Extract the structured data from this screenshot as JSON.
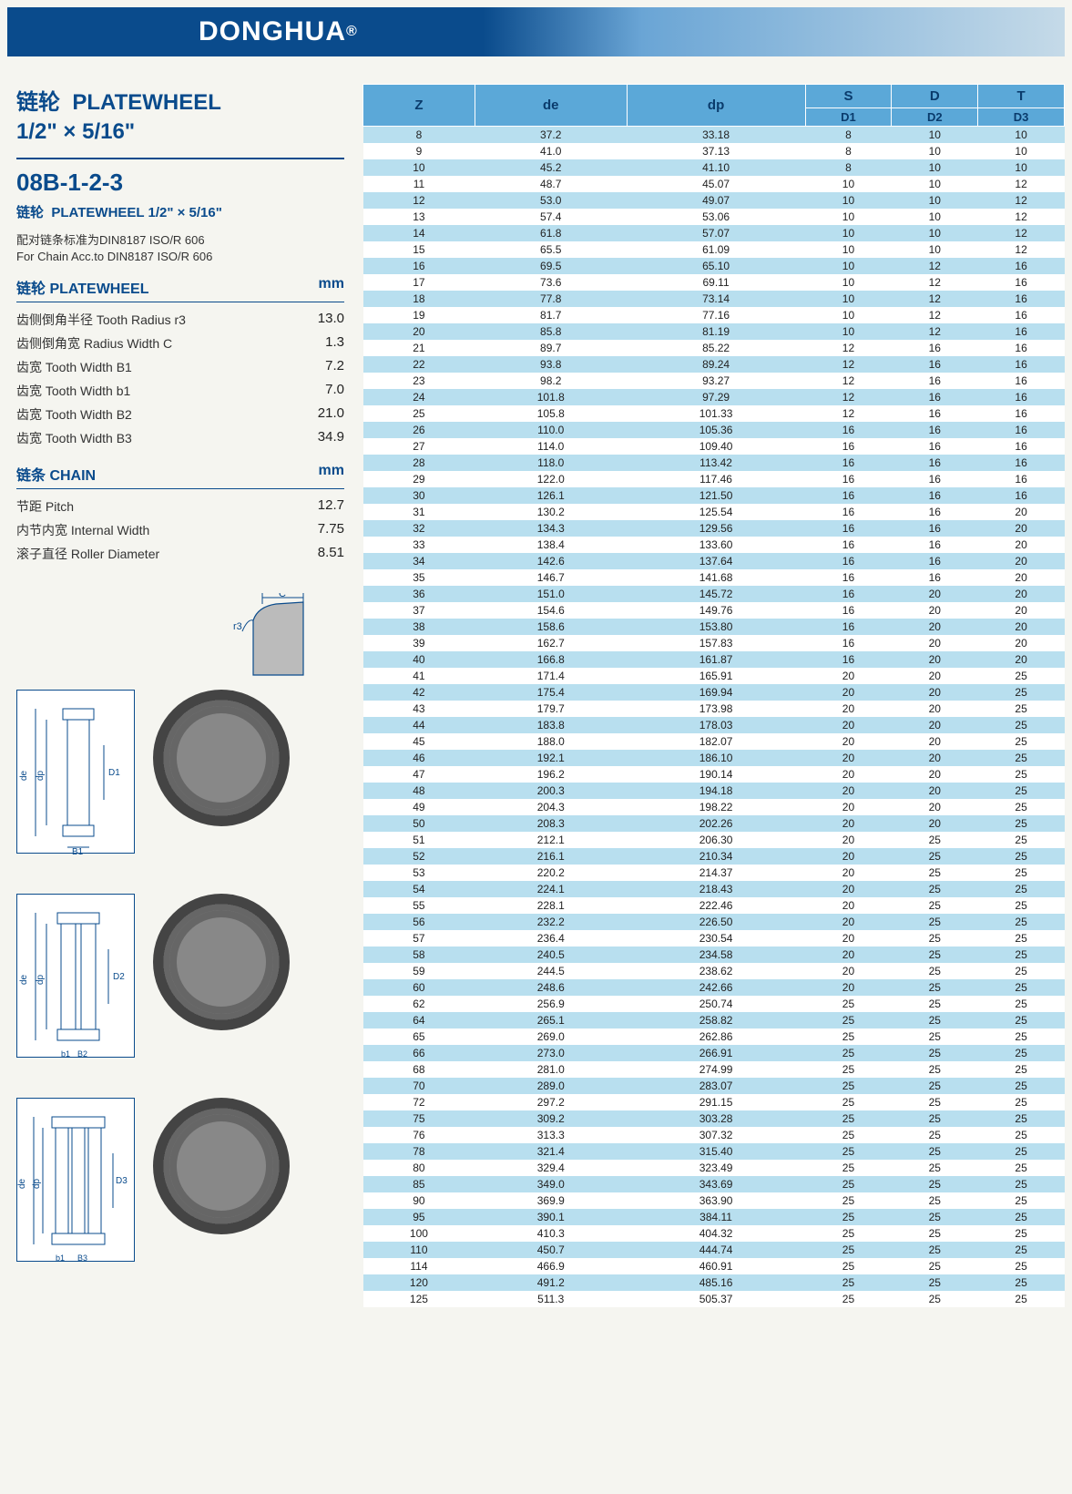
{
  "banner": {
    "brand": "DONGHUA",
    "reg": "®"
  },
  "header": {
    "title_cn": "链轮",
    "title_en": "PLATEWHEEL",
    "size": "1/2\" × 5/16\"",
    "code": "08B-1-2-3",
    "subtitle_cn": "链轮",
    "subtitle_en": "PLATEWHEEL  1/2\" × 5/16\"",
    "note_cn": "配对链条标准为DIN8187 ISO/R 606",
    "note_en": "For Chain Acc.to DIN8187 ISO/R 606"
  },
  "specs": {
    "platewheel": {
      "head_cn": "链轮 PLATEWHEEL",
      "unit": "mm",
      "rows": [
        {
          "label": "齿侧倒角半径  Tooth Radius r3",
          "value": "13.0"
        },
        {
          "label": "齿侧倒角宽  Radius Width C",
          "value": "1.3"
        },
        {
          "label": "齿宽  Tooth Width B1",
          "value": "7.2"
        },
        {
          "label": "齿宽  Tooth Width b1",
          "value": "7.0"
        },
        {
          "label": "齿宽  Tooth Width B2",
          "value": "21.0"
        },
        {
          "label": "齿宽  Tooth Width B3",
          "value": "34.9"
        }
      ]
    },
    "chain": {
      "head_cn": "链条 CHAIN",
      "unit": "mm",
      "rows": [
        {
          "label": "节距  Pitch",
          "value": "12.7"
        },
        {
          "label": "内节内宽  Internal Width",
          "value": "7.75"
        },
        {
          "label": "滚子直径  Roller Diameter",
          "value": "8.51"
        }
      ]
    }
  },
  "diagrams": {
    "labels": {
      "c": "C",
      "r3": "r3",
      "de": "de",
      "dp": "dp",
      "d1": "D1",
      "d2": "D2",
      "d3": "D3",
      "b1": "B1",
      "b1s": "b1",
      "b2": "B2",
      "b3": "B3"
    }
  },
  "table": {
    "headers": {
      "z": "Z",
      "de": "de",
      "dp": "dp",
      "s": "S",
      "s_sub": "D1",
      "d": "D",
      "d_sub": "D2",
      "t": "T",
      "t_sub": "D3"
    },
    "rows": [
      [
        8,
        "37.2",
        "33.18",
        8,
        10,
        10
      ],
      [
        9,
        "41.0",
        "37.13",
        8,
        10,
        10
      ],
      [
        10,
        "45.2",
        "41.10",
        8,
        10,
        10
      ],
      [
        11,
        "48.7",
        "45.07",
        10,
        10,
        12
      ],
      [
        12,
        "53.0",
        "49.07",
        10,
        10,
        12
      ],
      [
        13,
        "57.4",
        "53.06",
        10,
        10,
        12
      ],
      [
        14,
        "61.8",
        "57.07",
        10,
        10,
        12
      ],
      [
        15,
        "65.5",
        "61.09",
        10,
        10,
        12
      ],
      [
        16,
        "69.5",
        "65.10",
        10,
        12,
        16
      ],
      [
        17,
        "73.6",
        "69.11",
        10,
        12,
        16
      ],
      [
        18,
        "77.8",
        "73.14",
        10,
        12,
        16
      ],
      [
        19,
        "81.7",
        "77.16",
        10,
        12,
        16
      ],
      [
        20,
        "85.8",
        "81.19",
        10,
        12,
        16
      ],
      [
        21,
        "89.7",
        "85.22",
        12,
        16,
        16
      ],
      [
        22,
        "93.8",
        "89.24",
        12,
        16,
        16
      ],
      [
        23,
        "98.2",
        "93.27",
        12,
        16,
        16
      ],
      [
        24,
        "101.8",
        "97.29",
        12,
        16,
        16
      ],
      [
        25,
        "105.8",
        "101.33",
        12,
        16,
        16
      ],
      [
        26,
        "110.0",
        "105.36",
        16,
        16,
        16
      ],
      [
        27,
        "114.0",
        "109.40",
        16,
        16,
        16
      ],
      [
        28,
        "118.0",
        "113.42",
        16,
        16,
        16
      ],
      [
        29,
        "122.0",
        "117.46",
        16,
        16,
        16
      ],
      [
        30,
        "126.1",
        "121.50",
        16,
        16,
        16
      ],
      [
        31,
        "130.2",
        "125.54",
        16,
        16,
        20
      ],
      [
        32,
        "134.3",
        "129.56",
        16,
        16,
        20
      ],
      [
        33,
        "138.4",
        "133.60",
        16,
        16,
        20
      ],
      [
        34,
        "142.6",
        "137.64",
        16,
        16,
        20
      ],
      [
        35,
        "146.7",
        "141.68",
        16,
        16,
        20
      ],
      [
        36,
        "151.0",
        "145.72",
        16,
        20,
        20
      ],
      [
        37,
        "154.6",
        "149.76",
        16,
        20,
        20
      ],
      [
        38,
        "158.6",
        "153.80",
        16,
        20,
        20
      ],
      [
        39,
        "162.7",
        "157.83",
        16,
        20,
        20
      ],
      [
        40,
        "166.8",
        "161.87",
        16,
        20,
        20
      ],
      [
        41,
        "171.4",
        "165.91",
        20,
        20,
        25
      ],
      [
        42,
        "175.4",
        "169.94",
        20,
        20,
        25
      ],
      [
        43,
        "179.7",
        "173.98",
        20,
        20,
        25
      ],
      [
        44,
        "183.8",
        "178.03",
        20,
        20,
        25
      ],
      [
        45,
        "188.0",
        "182.07",
        20,
        20,
        25
      ],
      [
        46,
        "192.1",
        "186.10",
        20,
        20,
        25
      ],
      [
        47,
        "196.2",
        "190.14",
        20,
        20,
        25
      ],
      [
        48,
        "200.3",
        "194.18",
        20,
        20,
        25
      ],
      [
        49,
        "204.3",
        "198.22",
        20,
        20,
        25
      ],
      [
        50,
        "208.3",
        "202.26",
        20,
        20,
        25
      ],
      [
        51,
        "212.1",
        "206.30",
        20,
        25,
        25
      ],
      [
        52,
        "216.1",
        "210.34",
        20,
        25,
        25
      ],
      [
        53,
        "220.2",
        "214.37",
        20,
        25,
        25
      ],
      [
        54,
        "224.1",
        "218.43",
        20,
        25,
        25
      ],
      [
        55,
        "228.1",
        "222.46",
        20,
        25,
        25
      ],
      [
        56,
        "232.2",
        "226.50",
        20,
        25,
        25
      ],
      [
        57,
        "236.4",
        "230.54",
        20,
        25,
        25
      ],
      [
        58,
        "240.5",
        "234.58",
        20,
        25,
        25
      ],
      [
        59,
        "244.5",
        "238.62",
        20,
        25,
        25
      ],
      [
        60,
        "248.6",
        "242.66",
        20,
        25,
        25
      ],
      [
        62,
        "256.9",
        "250.74",
        25,
        25,
        25
      ],
      [
        64,
        "265.1",
        "258.82",
        25,
        25,
        25
      ],
      [
        65,
        "269.0",
        "262.86",
        25,
        25,
        25
      ],
      [
        66,
        "273.0",
        "266.91",
        25,
        25,
        25
      ],
      [
        68,
        "281.0",
        "274.99",
        25,
        25,
        25
      ],
      [
        70,
        "289.0",
        "283.07",
        25,
        25,
        25
      ],
      [
        72,
        "297.2",
        "291.15",
        25,
        25,
        25
      ],
      [
        75,
        "309.2",
        "303.28",
        25,
        25,
        25
      ],
      [
        76,
        "313.3",
        "307.32",
        25,
        25,
        25
      ],
      [
        78,
        "321.4",
        "315.40",
        25,
        25,
        25
      ],
      [
        80,
        "329.4",
        "323.49",
        25,
        25,
        25
      ],
      [
        85,
        "349.0",
        "343.69",
        25,
        25,
        25
      ],
      [
        90,
        "369.9",
        "363.90",
        25,
        25,
        25
      ],
      [
        95,
        "390.1",
        "384.11",
        25,
        25,
        25
      ],
      [
        100,
        "410.3",
        "404.32",
        25,
        25,
        25
      ],
      [
        110,
        "450.7",
        "444.74",
        25,
        25,
        25
      ],
      [
        114,
        "466.9",
        "460.91",
        25,
        25,
        25
      ],
      [
        120,
        "491.2",
        "485.16",
        25,
        25,
        25
      ],
      [
        125,
        "511.3",
        "505.37",
        25,
        25,
        25
      ]
    ]
  },
  "style": {
    "brand_color": "#0a4b8c",
    "row_odd_bg": "#b8dfef",
    "row_even_bg": "#ffffff",
    "header_bg": "#5ba8d8"
  }
}
